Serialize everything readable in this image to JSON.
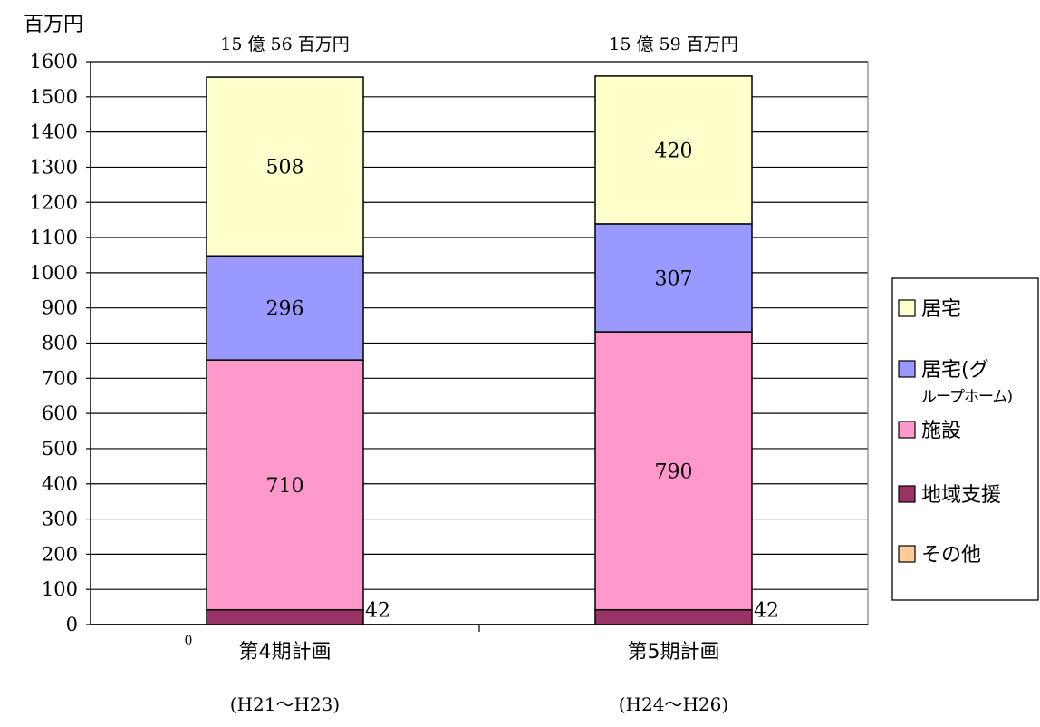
{
  "chart_data": {
    "type": "bar",
    "stacked": true,
    "unit_label": "百万円",
    "ylim": [
      0,
      1600
    ],
    "y_ticks": [
      0,
      100,
      200,
      300,
      400,
      500,
      600,
      700,
      800,
      900,
      1000,
      1100,
      1200,
      1300,
      1400,
      1500,
      1600
    ],
    "grid": true,
    "legend_position": "right",
    "categories": [
      {
        "label": "第4期計画",
        "sublabel": "(H21～H23)",
        "total_label": "15 億 56 百万円"
      },
      {
        "label": "第5期計画",
        "sublabel": "(H24～H26)",
        "total_label": "15 億 59 百万円"
      }
    ],
    "series": [
      {
        "name": "その他",
        "color": "#ffcc99",
        "values": [
          0,
          0
        ],
        "value_labels": [
          "0",
          ""
        ]
      },
      {
        "name": "地域支援",
        "color": "#993366",
        "values": [
          42,
          42
        ],
        "value_labels": [
          "42",
          "42"
        ]
      },
      {
        "name": "施設",
        "color": "#ff99cc",
        "values": [
          710,
          790
        ],
        "value_labels": [
          "710",
          "790"
        ]
      },
      {
        "name": "居宅(グループホーム)",
        "legend_lines": [
          "居宅(グ",
          "ループホーム)"
        ],
        "color": "#9999ff",
        "values": [
          296,
          307
        ],
        "value_labels": [
          "296",
          "307"
        ]
      },
      {
        "name": "居宅",
        "color": "#ffffcc",
        "values": [
          508,
          420
        ],
        "value_labels": [
          "508",
          "420"
        ]
      }
    ],
    "legend_order": [
      "居宅",
      "居宅(グループホーム)",
      "施設",
      "地域支援",
      "その他"
    ]
  }
}
